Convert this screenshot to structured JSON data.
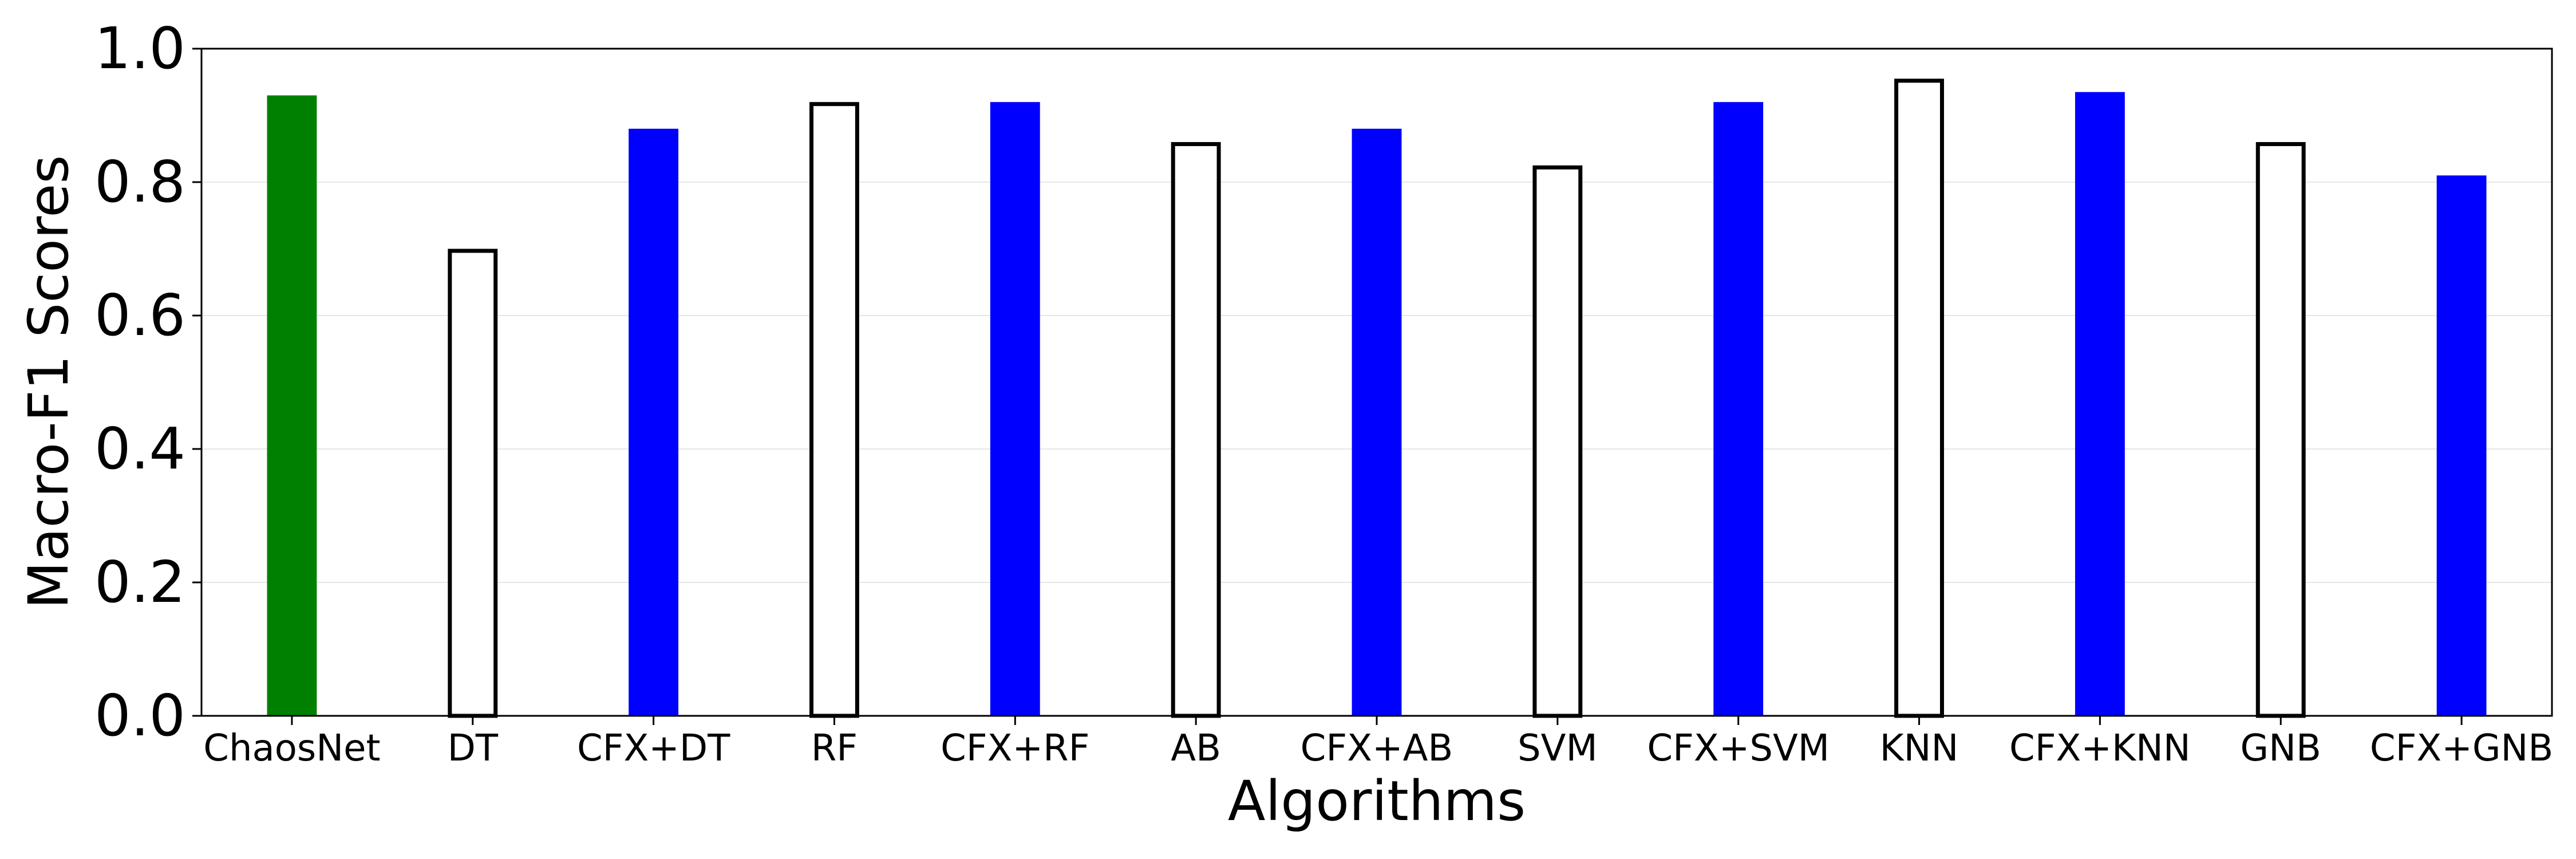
{
  "chart_data": {
    "type": "bar",
    "title": "",
    "xlabel": "Algorithms",
    "ylabel": "Macro-F1 Scores",
    "ylim": [
      0.0,
      1.0
    ],
    "yticks": [
      "0.0",
      "0.2",
      "0.4",
      "0.6",
      "0.8",
      "1.0"
    ],
    "grid": "horizontal, faint",
    "categories": [
      "ChaosNet",
      "DT",
      "CFX+DT",
      "RF",
      "CFX+RF",
      "AB",
      "CFX+AB",
      "SVM",
      "CFX+SVM",
      "KNN",
      "CFX+KNN",
      "GNB",
      "CFX+GNB"
    ],
    "values": [
      0.93,
      0.7,
      0.88,
      0.92,
      0.92,
      0.86,
      0.88,
      0.825,
      0.92,
      0.955,
      0.935,
      0.86,
      0.81
    ],
    "bar_styles": [
      "filled",
      "outline",
      "filled",
      "outline",
      "filled",
      "outline",
      "filled",
      "outline",
      "filled",
      "outline",
      "filled",
      "outline",
      "filled"
    ],
    "bar_colors": [
      "#008000",
      "#ffffff",
      "#0000ff",
      "#ffffff",
      "#0000ff",
      "#ffffff",
      "#0000ff",
      "#ffffff",
      "#0000ff",
      "#ffffff",
      "#0000ff",
      "#ffffff",
      "#0000ff"
    ]
  }
}
